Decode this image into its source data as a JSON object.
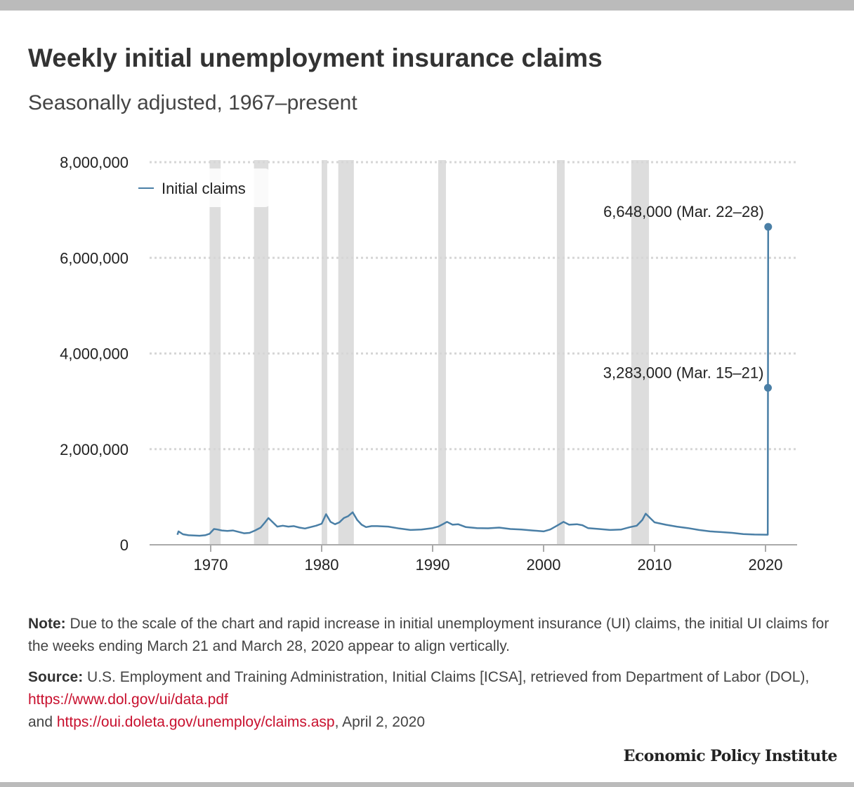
{
  "title": "Weekly initial unemployment insurance claims",
  "subtitle": "Seasonally adjusted, 1967–present",
  "note": {
    "label": "Note:",
    "text": " Due to the scale of the chart and rapid increase in initial unemployment insurance (UI) claims, the initial UI claims for the weeks ending March 21 and March 28, 2020 appear to align vertically."
  },
  "source": {
    "label": "Source:",
    "text1": " U.S. Employment and Training Administration, Initial Claims [ICSA], retrieved from Department of Labor (DOL), ",
    "link1": "https://www.dol.gov/ui/data.pdf",
    "text2": "and ",
    "link2": "https://oui.doleta.gov/unemploy/claims.asp",
    "text3": ", April 2, 2020"
  },
  "brand": "Economic Policy Institute",
  "colors": {
    "line": "#4a7fa6",
    "recession": "#dddddd",
    "grid": "#d6d6d6",
    "axis": "#aaaaaa",
    "link": "#c8102e"
  },
  "chart_data": {
    "type": "line",
    "title": "Weekly initial unemployment insurance claims",
    "xlabel": "",
    "ylabel": "",
    "xlim": [
      1964.5,
      2023
    ],
    "ylim": [
      0,
      8000000
    ],
    "x_ticks": [
      1970,
      1980,
      1990,
      2000,
      2010,
      2020
    ],
    "y_ticks": [
      0,
      2000000,
      4000000,
      6000000,
      8000000
    ],
    "y_tick_labels": [
      "0",
      "2,000,000",
      "4,000,000",
      "6,000,000",
      "8,000,000"
    ],
    "grid": true,
    "legend": {
      "position": "top-left",
      "entries": [
        "Initial claims"
      ]
    },
    "recessions": [
      [
        1969.9,
        1970.9
      ],
      [
        1973.9,
        1975.2
      ],
      [
        1980.0,
        1980.5
      ],
      [
        1981.5,
        1982.9
      ],
      [
        1990.5,
        1991.2
      ],
      [
        2001.2,
        2001.9
      ],
      [
        2007.9,
        2009.5
      ]
    ],
    "series": [
      {
        "name": "Initial claims",
        "x": [
          1967.0,
          1967.1,
          1967.5,
          1968.0,
          1968.5,
          1969.0,
          1969.5,
          1969.9,
          1970.3,
          1970.6,
          1971.0,
          1971.5,
          1972.0,
          1972.5,
          1973.0,
          1973.5,
          1974.0,
          1974.5,
          1974.9,
          1975.2,
          1975.6,
          1976.0,
          1976.5,
          1977.0,
          1977.5,
          1978.0,
          1978.5,
          1979.0,
          1979.5,
          1980.0,
          1980.4,
          1980.8,
          1981.2,
          1981.6,
          1982.0,
          1982.4,
          1982.8,
          1983.2,
          1983.6,
          1984.0,
          1984.5,
          1985.0,
          1986.0,
          1987.0,
          1988.0,
          1989.0,
          1990.0,
          1990.5,
          1991.0,
          1991.3,
          1991.8,
          1992.3,
          1993.0,
          1994.0,
          1995.0,
          1996.0,
          1997.0,
          1998.0,
          1999.0,
          2000.0,
          2000.6,
          2001.2,
          2001.8,
          2002.3,
          2003.0,
          2003.5,
          2004.0,
          2005.0,
          2006.0,
          2007.0,
          2007.8,
          2008.4,
          2008.9,
          2009.2,
          2009.6,
          2010.0,
          2011.0,
          2012.0,
          2013.0,
          2014.0,
          2015.0,
          2016.0,
          2017.0,
          2018.0,
          2019.0,
          2020.0,
          2020.2,
          2020.22,
          2020.24
        ],
        "values": [
          210000,
          280000,
          220000,
          200000,
          195000,
          190000,
          200000,
          230000,
          330000,
          320000,
          300000,
          290000,
          300000,
          270000,
          240000,
          250000,
          300000,
          360000,
          470000,
          560000,
          470000,
          380000,
          400000,
          380000,
          390000,
          360000,
          340000,
          370000,
          400000,
          440000,
          640000,
          480000,
          430000,
          470000,
          560000,
          600000,
          680000,
          520000,
          420000,
          370000,
          390000,
          390000,
          380000,
          340000,
          310000,
          320000,
          350000,
          380000,
          440000,
          480000,
          420000,
          430000,
          370000,
          350000,
          345000,
          360000,
          330000,
          320000,
          300000,
          280000,
          320000,
          400000,
          480000,
          420000,
          430000,
          410000,
          350000,
          330000,
          310000,
          320000,
          370000,
          400000,
          520000,
          650000,
          560000,
          470000,
          420000,
          380000,
          350000,
          310000,
          280000,
          265000,
          250000,
          225000,
          215000,
          211000,
          211000,
          3283000,
          6648000
        ]
      }
    ],
    "annotations": [
      {
        "x": 2020.22,
        "y": 3283000,
        "text": "3,283,000 (Mar. 15–21)"
      },
      {
        "x": 2020.24,
        "y": 6648000,
        "text": "6,648,000 (Mar. 22–28)"
      }
    ]
  }
}
